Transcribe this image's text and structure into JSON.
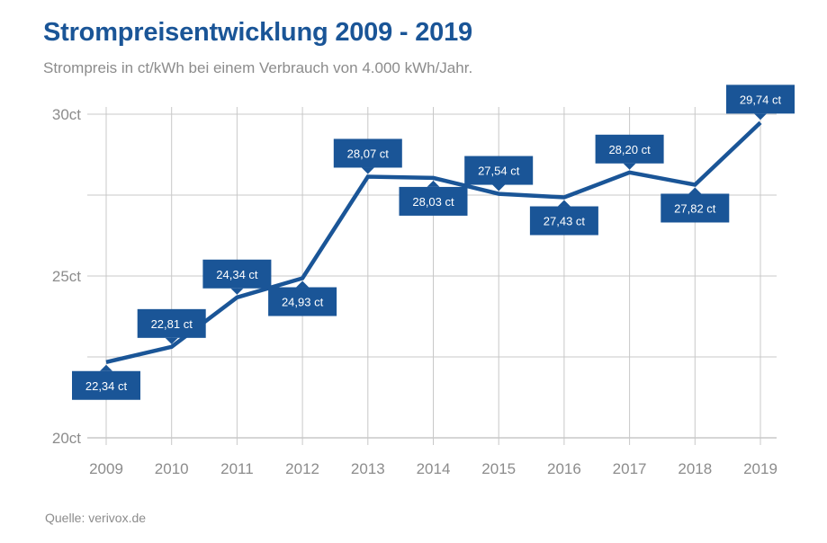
{
  "header": {
    "title": "Strompreisentwicklung 2009 - 2019",
    "subtitle": "Strompreis in ct/kWh bei einem Verbrauch von 4.000 kWh/Jahr."
  },
  "footer": {
    "source": "Quelle: verivox.de"
  },
  "colors": {
    "line": "#1a5597",
    "grid": "#c8c8c8",
    "text": "#8c8c8c"
  },
  "chart_data": {
    "type": "line",
    "title": "Strompreisentwicklung 2009 - 2019",
    "subtitle": "Strompreis in ct/kWh bei einem Verbrauch von 4.000 kWh/Jahr.",
    "xlabel": "",
    "ylabel": "",
    "categories": [
      "2009",
      "2010",
      "2011",
      "2012",
      "2013",
      "2014",
      "2015",
      "2016",
      "2017",
      "2018",
      "2019"
    ],
    "values": [
      22.34,
      22.81,
      24.34,
      24.93,
      28.07,
      28.03,
      27.54,
      27.43,
      28.2,
      27.82,
      29.74
    ],
    "data_labels": [
      "22,34 ct",
      "22,81 ct",
      "24,34 ct",
      "24,93 ct",
      "28,07 ct",
      "28,03 ct",
      "27,54 ct",
      "27,43 ct",
      "28,20 ct",
      "27,82 ct",
      "29,74 ct"
    ],
    "label_positions": [
      "below",
      "above",
      "above",
      "below",
      "above",
      "below",
      "above",
      "below",
      "above",
      "below",
      "above"
    ],
    "y_ticks": [
      20,
      25,
      30
    ],
    "y_tick_labels": [
      "20ct",
      "25ct",
      "30ct"
    ],
    "ylim": [
      20,
      30
    ],
    "grid": true,
    "legend": "none"
  }
}
